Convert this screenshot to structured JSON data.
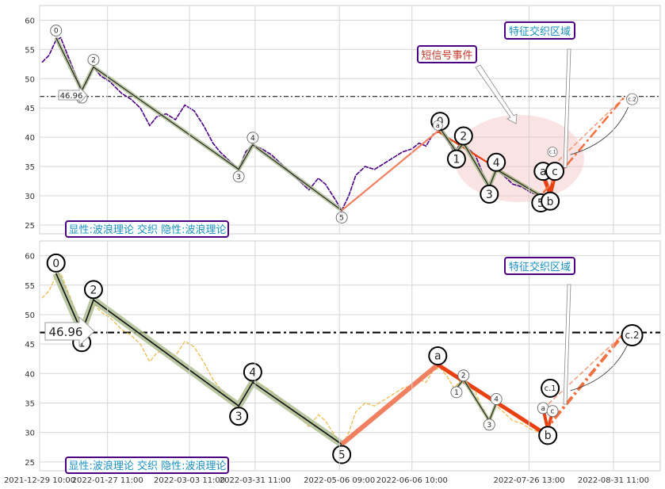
{
  "chart_data": [
    {
      "type": "line",
      "panel": "top",
      "ylim": [
        23.5,
        62.5
      ],
      "yticks": [
        25,
        30,
        35,
        40,
        45,
        50,
        55,
        60
      ],
      "grid": true,
      "level_value": 46.96,
      "level_label": "46.96",
      "legend_text": "显性:波浪理论 交织 隐性:波浪理论",
      "annotation_cross": "特征交织区域",
      "annotation_signal": "短信号事件",
      "price_series_color": "#4b0082",
      "price_points": [
        {
          "x": "2021-12-30",
          "y": 52.8
        },
        {
          "x": "2022-01-02",
          "y": 54.0
        },
        {
          "x": "2022-01-05",
          "y": 56.6
        },
        {
          "x": "2022-01-07",
          "y": 57.0
        },
        {
          "x": "2022-01-10",
          "y": 54.0
        },
        {
          "x": "2022-01-13",
          "y": 51.0
        },
        {
          "x": "2022-01-16",
          "y": 48.0
        },
        {
          "x": "2022-01-19",
          "y": 50.0
        },
        {
          "x": "2022-01-21",
          "y": 52.0
        },
        {
          "x": "2022-01-24",
          "y": 50.5
        },
        {
          "x": "2022-01-28",
          "y": 49.5
        },
        {
          "x": "2022-02-02",
          "y": 47.5
        },
        {
          "x": "2022-02-06",
          "y": 46.5
        },
        {
          "x": "2022-02-10",
          "y": 45.0
        },
        {
          "x": "2022-02-14",
          "y": 42.0
        },
        {
          "x": "2022-02-17",
          "y": 43.5
        },
        {
          "x": "2022-02-21",
          "y": 44.0
        },
        {
          "x": "2022-02-25",
          "y": 43.0
        },
        {
          "x": "2022-03-01",
          "y": 45.5
        },
        {
          "x": "2022-03-05",
          "y": 44.5
        },
        {
          "x": "2022-03-09",
          "y": 42.0
        },
        {
          "x": "2022-03-13",
          "y": 39.0
        },
        {
          "x": "2022-03-16",
          "y": 37.5
        },
        {
          "x": "2022-03-20",
          "y": 36.0
        },
        {
          "x": "2022-03-24",
          "y": 34.5
        },
        {
          "x": "2022-03-27",
          "y": 37.5
        },
        {
          "x": "2022-03-30",
          "y": 38.7
        },
        {
          "x": "2022-04-03",
          "y": 38.0
        },
        {
          "x": "2022-04-07",
          "y": 37.0
        },
        {
          "x": "2022-04-11",
          "y": 35.5
        },
        {
          "x": "2022-04-15",
          "y": 34.0
        },
        {
          "x": "2022-04-19",
          "y": 32.5
        },
        {
          "x": "2022-04-23",
          "y": 31.0
        },
        {
          "x": "2022-04-27",
          "y": 33.0
        },
        {
          "x": "2022-04-30",
          "y": 32.0
        },
        {
          "x": "2022-05-04",
          "y": 29.5
        },
        {
          "x": "2022-05-07",
          "y": 27.5
        },
        {
          "x": "2022-05-10",
          "y": 30.0
        },
        {
          "x": "2022-05-13",
          "y": 33.5
        },
        {
          "x": "2022-05-17",
          "y": 35.0
        },
        {
          "x": "2022-05-21",
          "y": 34.5
        },
        {
          "x": "2022-05-25",
          "y": 35.5
        },
        {
          "x": "2022-05-29",
          "y": 36.5
        },
        {
          "x": "2022-06-02",
          "y": 37.5
        },
        {
          "x": "2022-06-06",
          "y": 38.0
        },
        {
          "x": "2022-06-09",
          "y": 39.0
        },
        {
          "x": "2022-06-12",
          "y": 38.5
        },
        {
          "x": "2022-06-15",
          "y": 40.5
        },
        {
          "x": "2022-06-18",
          "y": 41.0
        },
        {
          "x": "2022-06-21",
          "y": 39.5
        },
        {
          "x": "2022-06-24",
          "y": 37.5
        },
        {
          "x": "2022-06-27",
          "y": 39.0
        },
        {
          "x": "2022-06-30",
          "y": 38.0
        },
        {
          "x": "2022-07-03",
          "y": 37.0
        },
        {
          "x": "2022-07-06",
          "y": 34.0
        },
        {
          "x": "2022-07-09",
          "y": 31.5
        },
        {
          "x": "2022-07-12",
          "y": 34.5
        },
        {
          "x": "2022-07-15",
          "y": 33.5
        },
        {
          "x": "2022-07-19",
          "y": 32.0
        },
        {
          "x": "2022-07-23",
          "y": 31.5
        },
        {
          "x": "2022-07-27",
          "y": 30.5
        },
        {
          "x": "2022-07-31",
          "y": 30.0
        }
      ],
      "wave_main": [
        {
          "label": "0",
          "x": "2022-01-05",
          "y": 57.0
        },
        {
          "label": "1",
          "x": "2022-01-16",
          "y": 48.0
        },
        {
          "label": "2",
          "x": "2022-01-21",
          "y": 52.0
        },
        {
          "label": "3",
          "x": "2022-03-24",
          "y": 34.5
        },
        {
          "label": "4",
          "x": "2022-03-30",
          "y": 38.7
        },
        {
          "label": "5",
          "x": "2022-05-07",
          "y": 27.5
        }
      ],
      "wave_sub": [
        {
          "label": "0",
          "x": "2022-06-18",
          "y": 41.5
        },
        {
          "label": "1",
          "x": "2022-06-25",
          "y": 37.5
        },
        {
          "label": "2",
          "x": "2022-06-28",
          "y": 39.0
        },
        {
          "label": "3",
          "x": "2022-07-09",
          "y": 31.5
        },
        {
          "label": "4",
          "x": "2022-07-12",
          "y": 34.5
        },
        {
          "label": "5",
          "x": "2022-07-31",
          "y": 30.0
        }
      ],
      "wave_abc": [
        {
          "label": "a",
          "x": "2022-08-01",
          "y": 33.5
        },
        {
          "label": "b",
          "x": "2022-08-04",
          "y": 30.3
        },
        {
          "label": "c",
          "x": "2022-08-06",
          "y": 33.5
        }
      ],
      "wave_c1": {
        "label": "c.1",
        "x": "2022-08-05",
        "y": 37.5
      },
      "wave_c2": {
        "label": "c.2",
        "x": "2022-09-08",
        "y": 46.5
      },
      "wave_a_marker": {
        "label": "a",
        "x": "2022-06-17",
        "y": 42.0
      },
      "link_up": [
        {
          "x": "2022-05-07",
          "y": 27.5
        },
        {
          "x": "2022-06-17",
          "y": 41.0
        }
      ],
      "link_down": [
        {
          "x": "2022-06-17",
          "y": 41.0
        },
        {
          "x": "2022-07-31",
          "y": 30.0
        }
      ],
      "projection": [
        {
          "x": "2022-08-01",
          "y": 30.5
        },
        {
          "x": "2022-09-05",
          "y": 47.0
        }
      ]
    },
    {
      "type": "line",
      "panel": "bottom",
      "ylim": [
        23.5,
        62.5
      ],
      "yticks": [
        25,
        30,
        35,
        40,
        45,
        50,
        55,
        60
      ],
      "grid": true,
      "level_value": 46.96,
      "level_label": "46.96",
      "legend_text": "显性:波浪理论 交织 隐性:波浪理论",
      "annotation_cross": "特征交织区域",
      "price_series_color": "#e8b030",
      "wave_main": [
        {
          "label": "0",
          "x": "2022-01-05",
          "y": 57.0
        },
        {
          "label": "1",
          "x": "2022-01-16",
          "y": 47.0
        },
        {
          "label": "2",
          "x": "2022-01-21",
          "y": 52.5
        },
        {
          "label": "3",
          "x": "2022-03-24",
          "y": 34.5
        },
        {
          "label": "4",
          "x": "2022-03-30",
          "y": 38.5
        },
        {
          "label": "5",
          "x": "2022-05-07",
          "y": 28.0
        }
      ],
      "wave_sub": [
        {
          "label": "1",
          "x": "2022-06-25",
          "y": 37.5
        },
        {
          "label": "2",
          "x": "2022-06-28",
          "y": 39.0
        },
        {
          "label": "3",
          "x": "2022-07-09",
          "y": 32.0
        },
        {
          "label": "4",
          "x": "2022-07-12",
          "y": 35.0
        }
      ],
      "wave_abc": [
        {
          "label": "a",
          "x": "2022-08-01",
          "y": 34.0
        },
        {
          "label": "b",
          "x": "2022-08-03",
          "y": 30.5
        },
        {
          "label": "c",
          "x": "2022-08-05",
          "y": 33.5
        }
      ],
      "wave_c1": {
        "label": "c.1",
        "x": "2022-08-04",
        "y": 37.5
      },
      "wave_c2": {
        "label": "c.2",
        "x": "2022-09-08",
        "y": 46.5
      },
      "wave_a_marker": {
        "label": "a",
        "x": "2022-06-17",
        "y": 43.0
      },
      "wave_b_marker": {
        "label": "b",
        "x": "2022-08-03",
        "y": 29.5
      },
      "link_up": [
        {
          "x": "2022-05-07",
          "y": 28.0
        },
        {
          "x": "2022-06-17",
          "y": 41.5
        }
      ],
      "link_down": [
        {
          "x": "2022-06-17",
          "y": 41.5
        },
        {
          "x": "2022-08-01",
          "y": 30.0
        }
      ],
      "projection": [
        {
          "x": "2022-08-01",
          "y": 30.0
        },
        {
          "x": "2022-09-05",
          "y": 47.0
        }
      ]
    }
  ],
  "x_axis": {
    "start": "2021-12-29",
    "end": "2022-09-20",
    "tick_dates": [
      "2021-12-29",
      "2022-01-27",
      "2022-03-03",
      "2022-03-31",
      "2022-05-06",
      "2022-06-06",
      "2022-07-26",
      "2022-08-31"
    ],
    "tick_labels": [
      "2021-12-29 10:00",
      "2022-01-27 11:00",
      "2022-03-03 11:00",
      "2022-03-31 11:00",
      "2022-05-06 09:00",
      "2022-06-06 10:00",
      "2022-07-26 13:00",
      "2022-08-31 11:00"
    ]
  },
  "colors": {
    "grid": "#d5d5d5",
    "wave_line": "#111111",
    "wave_band": "#a9b98c",
    "trend_up": "#f08060",
    "trend_down": "#e84010",
    "projection": "#f07040",
    "ellipse": "#f5c0c0",
    "label_box_border": "#4b0082",
    "label_text_blue": "#1a8fc0",
    "label_text_red": "#c0392b"
  }
}
